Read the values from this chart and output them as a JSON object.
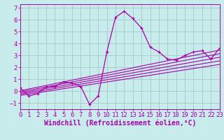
{
  "title": "",
  "xlabel": "Windchill (Refroidissement éolien,°C)",
  "ylabel": "",
  "bg_color": "#c8ecec",
  "line_color": "#aa00aa",
  "grid_color": "#aacccc",
  "xlim": [
    0,
    23
  ],
  "ylim": [
    -1.5,
    7.3
  ],
  "yticks": [
    -1,
    0,
    1,
    2,
    3,
    4,
    5,
    6,
    7
  ],
  "xticks": [
    0,
    1,
    2,
    3,
    4,
    5,
    6,
    7,
    8,
    9,
    10,
    11,
    12,
    13,
    14,
    15,
    16,
    17,
    18,
    19,
    20,
    21,
    22,
    23
  ],
  "series": [
    [
      0,
      0.3
    ],
    [
      1,
      -0.4
    ],
    [
      2,
      -0.2
    ],
    [
      3,
      0.4
    ],
    [
      4,
      0.4
    ],
    [
      5,
      0.8
    ],
    [
      6,
      0.7
    ],
    [
      7,
      0.4
    ],
    [
      8,
      -1.1
    ],
    [
      9,
      -0.4
    ],
    [
      10,
      3.3
    ],
    [
      11,
      6.2
    ],
    [
      12,
      6.7
    ],
    [
      13,
      6.1
    ],
    [
      14,
      5.3
    ],
    [
      15,
      3.7
    ],
    [
      16,
      3.3
    ],
    [
      17,
      2.7
    ],
    [
      18,
      2.6
    ],
    [
      19,
      3.0
    ],
    [
      20,
      3.3
    ],
    [
      21,
      3.4
    ],
    [
      22,
      2.7
    ],
    [
      23,
      3.6
    ]
  ],
  "regression_lines": [
    {
      "x": [
        0,
        23
      ],
      "y": [
        0.05,
        3.45
      ]
    },
    {
      "x": [
        0,
        23
      ],
      "y": [
        -0.05,
        3.15
      ]
    },
    {
      "x": [
        0,
        23
      ],
      "y": [
        -0.15,
        2.85
      ]
    },
    {
      "x": [
        0,
        23
      ],
      "y": [
        -0.25,
        2.55
      ]
    },
    {
      "x": [
        0,
        23
      ],
      "y": [
        -0.35,
        2.25
      ]
    }
  ],
  "font_family": "monospace",
  "xlabel_fontsize": 7.0,
  "tick_fontsize": 6.5
}
